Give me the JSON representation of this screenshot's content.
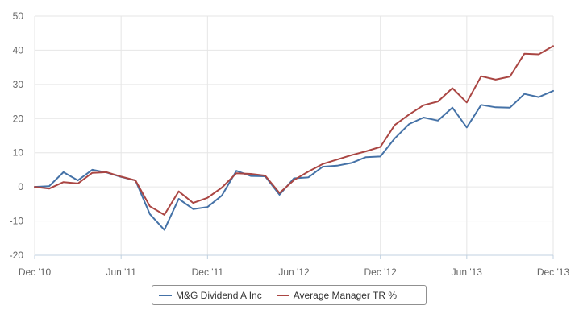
{
  "chart_data": {
    "type": "line",
    "title": "",
    "xlabel": "",
    "ylabel": "",
    "x_ticks": [
      "Dec '10",
      "Jun '11",
      "Dec '11",
      "Jun '12",
      "Dec '12",
      "Jun '13",
      "Dec '13"
    ],
    "y_ticks": [
      "-20",
      "-10",
      "0",
      "10",
      "20",
      "30",
      "40",
      "50"
    ],
    "ylim": [
      -20,
      50
    ],
    "xlim": [
      "2010-12",
      "2013-12"
    ],
    "grid": true,
    "legend_position": "bottom-center",
    "x": [
      "2010-12",
      "2011-01",
      "2011-02",
      "2011-03",
      "2011-04",
      "2011-05",
      "2011-06",
      "2011-07",
      "2011-08",
      "2011-09",
      "2011-10",
      "2011-11",
      "2011-12",
      "2012-01",
      "2012-02",
      "2012-03",
      "2012-04",
      "2012-05",
      "2012-06",
      "2012-07",
      "2012-08",
      "2012-09",
      "2012-10",
      "2012-11",
      "2012-12",
      "2013-01",
      "2013-02",
      "2013-03",
      "2013-04",
      "2013-05",
      "2013-06",
      "2013-07",
      "2013-08",
      "2013-09",
      "2013-10",
      "2013-11",
      "2013-12"
    ],
    "series": [
      {
        "name": "M&G Dividend A Inc",
        "color": "#4572a7",
        "values": [
          0,
          0.2,
          4.3,
          1.9,
          5.0,
          4.2,
          2.9,
          1.9,
          -8.0,
          -12.6,
          -3.5,
          -6.5,
          -5.9,
          -2.5,
          4.7,
          3.2,
          3.1,
          -2.3,
          2.5,
          2.8,
          5.9,
          6.2,
          7.0,
          8.7,
          8.9,
          14.2,
          18.4,
          20.3,
          19.4,
          23.2,
          17.4,
          24.0,
          23.3,
          23.2,
          27.2,
          26.3,
          28.1
        ]
      },
      {
        "name": "Average Manager TR %",
        "color": "#aa4643",
        "values": [
          0,
          -0.5,
          1.4,
          1.0,
          4.1,
          4.3,
          3.0,
          1.9,
          -5.7,
          -8.2,
          -1.3,
          -4.7,
          -3.2,
          -0.2,
          4.0,
          3.8,
          3.3,
          -1.8,
          2.0,
          4.5,
          6.7,
          8.0,
          9.3,
          10.4,
          11.7,
          18.1,
          21.2,
          23.9,
          25.0,
          28.9,
          24.7,
          32.4,
          31.4,
          32.3,
          39.0,
          38.8,
          41.2
        ]
      }
    ]
  }
}
